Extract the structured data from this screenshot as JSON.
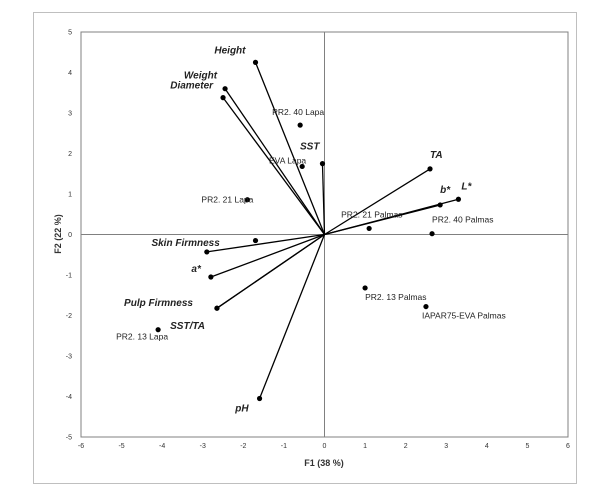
{
  "chart_data": {
    "type": "scatter",
    "title": "",
    "xlabel": "F1 (38 %)",
    "ylabel": "F2 (22 %)",
    "xlim": [
      -6,
      6
    ],
    "ylim": [
      -5,
      5
    ],
    "x_ticks": [
      -6,
      -5,
      -4,
      -3,
      -2,
      -1,
      0,
      1,
      2,
      3,
      4,
      5,
      6
    ],
    "y_ticks": [
      -5,
      -4,
      -3,
      -2,
      -1,
      0,
      1,
      2,
      3,
      4,
      5
    ],
    "grid": false,
    "variables": [
      {
        "name": "Height",
        "x": -1.7,
        "y": 4.25
      },
      {
        "name": "Weight",
        "x": -2.45,
        "y": 3.6
      },
      {
        "name": "Diameter",
        "x": -2.5,
        "y": 3.38
      },
      {
        "name": "SST",
        "x": -0.05,
        "y": 1.75
      },
      {
        "name": "TA",
        "x": 2.6,
        "y": 1.62
      },
      {
        "name": "b*",
        "x": 2.85,
        "y": 0.73
      },
      {
        "name": "L*",
        "x": 3.3,
        "y": 0.87
      },
      {
        "name": "Skin Firmness",
        "x": -2.9,
        "y": -0.43
      },
      {
        "name": "a*",
        "x": -2.8,
        "y": -1.05
      },
      {
        "name": "Pulp Firmness",
        "x": -2.65,
        "y": -1.82
      },
      {
        "name": "SST/TA",
        "x": -2.65,
        "y": -1.82
      },
      {
        "name": "pH",
        "x": -1.6,
        "y": -4.05
      }
    ],
    "observations": [
      {
        "name": "PR2. 40 Lapa",
        "x": -0.6,
        "y": 2.7
      },
      {
        "name": "EVA Lapa",
        "x": -0.55,
        "y": 1.68
      },
      {
        "name": "PR2. 21 Lapa",
        "x": -1.9,
        "y": 0.86
      },
      {
        "name": "PR2. 21 Palmas",
        "x": 1.1,
        "y": 0.15
      },
      {
        "name": "PR2. 40 Palmas",
        "x": 2.65,
        "y": 0.02
      },
      {
        "name": "PR2. 13 Palmas",
        "x": 1.0,
        "y": -1.32
      },
      {
        "name": "IAPAR75-EVA Palmas",
        "x": 2.5,
        "y": -1.78
      },
      {
        "name": "PR2. 13 Lapa",
        "x": -4.1,
        "y": -2.35
      },
      {
        "name": "",
        "x": -1.7,
        "y": -0.15
      }
    ]
  }
}
